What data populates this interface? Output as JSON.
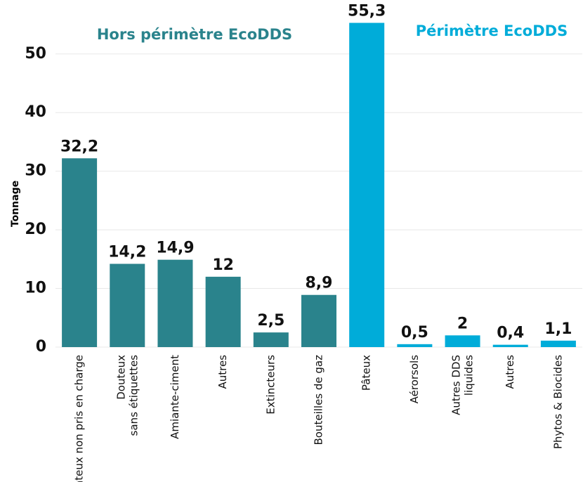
{
  "chart_data": {
    "type": "bar",
    "y_label": "Tonnage",
    "annotations": [
      "Hors périmètre EcoDDS",
      "Périmètre EcoDDS"
    ],
    "annotation_colors": [
      "#2a838c",
      "#00acd9"
    ],
    "categories": [
      "Pâteux non pris en charge",
      "Douteux\nsans étiquettes",
      "Amiante-ciment",
      "Autres",
      "Extincteurs",
      "Bouteilles de gaz",
      "Pâteux",
      "Aérorsols",
      "Autres DDS\nliquides",
      "Autres",
      "Phytos & Biocides"
    ],
    "values": [
      32.2,
      14.2,
      14.9,
      12,
      2.5,
      8.9,
      55.3,
      0.5,
      2,
      0.4,
      1.1
    ],
    "value_labels": [
      "32,2",
      "14,2",
      "14,9",
      "12",
      "2,5",
      "8,9",
      "55,3",
      "0,5",
      "2",
      "0,4",
      "1,1"
    ],
    "colors": [
      "#2a838c",
      "#2a838c",
      "#2a838c",
      "#2a838c",
      "#2a838c",
      "#2a838c",
      "#00acd9",
      "#00acd9",
      "#00acd9",
      "#00acd9",
      "#00acd9"
    ],
    "ylim": [
      0,
      58
    ],
    "yticks": [
      0,
      10,
      20,
      30,
      40,
      50
    ],
    "grid": true
  }
}
